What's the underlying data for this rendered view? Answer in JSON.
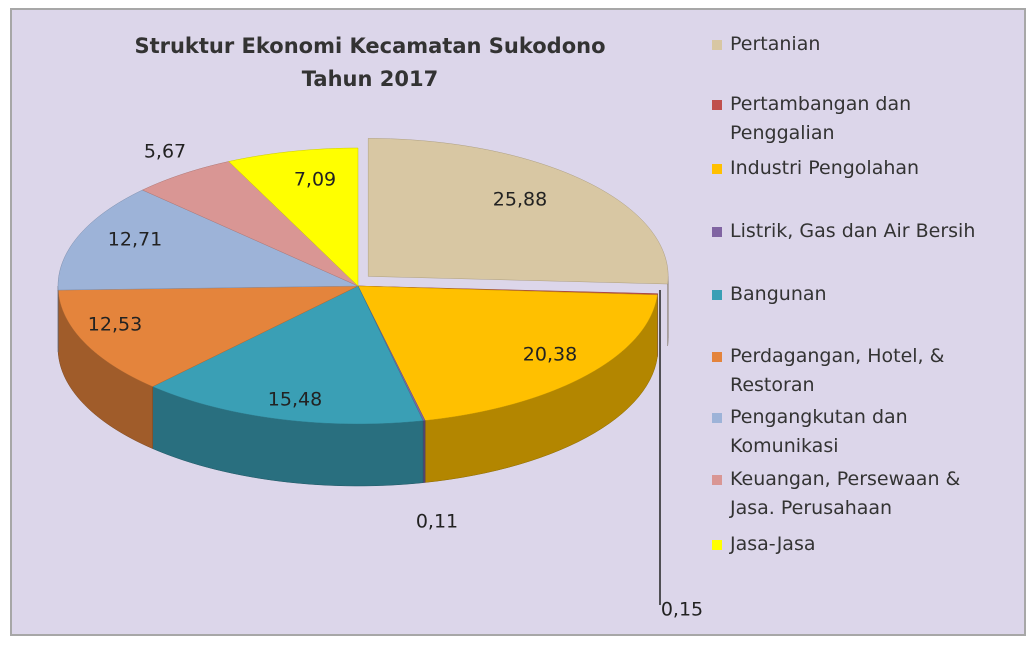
{
  "chart_data": {
    "type": "pie",
    "title": "Struktur Ekonomi Kecamatan Sukodono Tahun 2017",
    "categories": [
      "Pertanian",
      "Pertambangan dan Penggalian",
      "Industri Pengolahan",
      "Listrik, Gas dan Air Bersih",
      "Bangunan",
      "Perdagangan, Hotel, & Restoran",
      "Pengangkutan dan Komunikasi",
      "Keuangan, Persewaan & Jasa. Perusahaan",
      "Jasa-Jasa"
    ],
    "values": [
      25.88,
      0.15,
      20.38,
      0.11,
      15.48,
      12.53,
      12.71,
      5.67,
      7.09
    ],
    "value_labels": [
      "25,88",
      "0,15",
      "20,38",
      "0,11",
      "15,48",
      "12,53",
      "12,71",
      "5,67",
      "7,09"
    ],
    "colors": [
      "#d8c7a3",
      "#c0504d",
      "#ffc000",
      "#8064a2",
      "#3a9fb5",
      "#e4843c",
      "#9db3d8",
      "#d99694",
      "#ffff00"
    ],
    "legend": "right"
  }
}
